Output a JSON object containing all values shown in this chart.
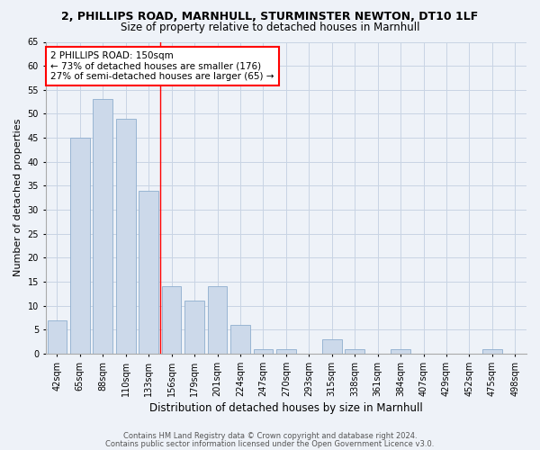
{
  "title": "2, PHILLIPS ROAD, MARNHULL, STURMINSTER NEWTON, DT10 1LF",
  "subtitle": "Size of property relative to detached houses in Marnhull",
  "xlabel": "Distribution of detached houses by size in Marnhull",
  "ylabel": "Number of detached properties",
  "categories": [
    "42sqm",
    "65sqm",
    "88sqm",
    "110sqm",
    "133sqm",
    "156sqm",
    "179sqm",
    "201sqm",
    "224sqm",
    "247sqm",
    "270sqm",
    "293sqm",
    "315sqm",
    "338sqm",
    "361sqm",
    "384sqm",
    "407sqm",
    "429sqm",
    "452sqm",
    "475sqm",
    "498sqm"
  ],
  "values": [
    7,
    45,
    53,
    49,
    34,
    14,
    11,
    14,
    6,
    1,
    1,
    0,
    3,
    1,
    0,
    1,
    0,
    0,
    0,
    1,
    0
  ],
  "bar_color": "#ccd9ea",
  "bar_edgecolor": "#8eaece",
  "vline_x": 4.5,
  "vline_color": "red",
  "ylim": [
    0,
    65
  ],
  "yticks": [
    0,
    5,
    10,
    15,
    20,
    25,
    30,
    35,
    40,
    45,
    50,
    55,
    60,
    65
  ],
  "annotation_text": "2 PHILLIPS ROAD: 150sqm\n← 73% of detached houses are smaller (176)\n27% of semi-detached houses are larger (65) →",
  "footer1": "Contains HM Land Registry data © Crown copyright and database right 2024.",
  "footer2": "Contains public sector information licensed under the Open Government Licence v3.0.",
  "bg_color": "#eef2f8",
  "plot_bg_color": "#eef2f8",
  "grid_color": "#c8d4e4",
  "title_fontsize": 9,
  "subtitle_fontsize": 8.5,
  "xlabel_fontsize": 8.5,
  "ylabel_fontsize": 8,
  "tick_fontsize": 7,
  "footer_fontsize": 6,
  "annot_fontsize": 7.5
}
